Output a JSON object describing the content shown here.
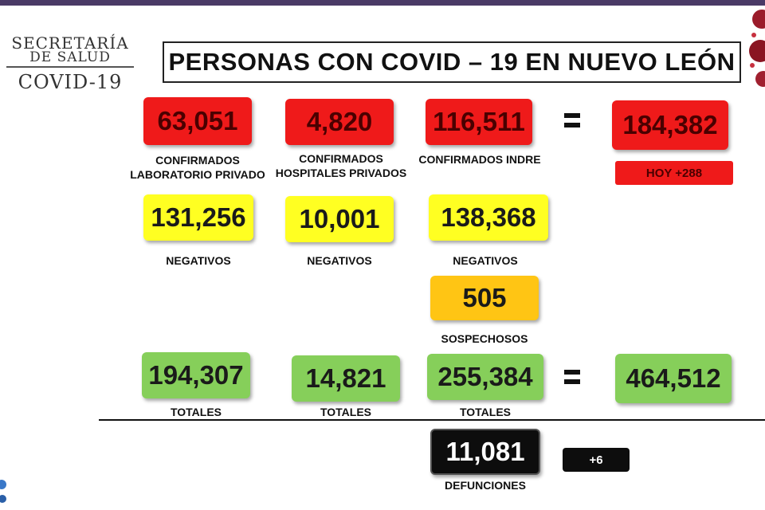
{
  "logo": {
    "line1": "SECRETARÍA",
    "line2": "DE SALUD",
    "line3": "COVID-19"
  },
  "title": "PERSONAS CON COVID – 19 EN NUEVO LEÓN",
  "confirmed": {
    "private_lab": {
      "value": "63,051",
      "label_line1": "CONFIRMADOS",
      "label_line2": "LABORATORIO PRIVADO"
    },
    "private_hospitals": {
      "value": "4,820",
      "label_line1": "CONFIRMADOS",
      "label_line2": "HOSPITALES PRIVADOS"
    },
    "indre": {
      "value": "116,511",
      "label": "CONFIRMADOS INDRE"
    },
    "total": {
      "value": "184,382",
      "today": "HOY +288"
    }
  },
  "negatives": {
    "private_lab": {
      "value": "131,256",
      "label": "NEGATIVOS"
    },
    "private_hospitals": {
      "value": "10,001",
      "label": "NEGATIVOS"
    },
    "indre": {
      "value": "138,368",
      "label": "NEGATIVOS"
    }
  },
  "suspects": {
    "value": "505",
    "label": "SOSPECHOSOS"
  },
  "totals": {
    "private_lab": {
      "value": "194,307",
      "label": "TOTALES"
    },
    "private_hospitals": {
      "value": "14,821",
      "label": "TOTALES"
    },
    "indre": {
      "value": "255,384",
      "label": "TOTALES"
    },
    "grand_total": {
      "value": "464,512"
    }
  },
  "deaths": {
    "value": "11,081",
    "label": "DEFUNCIONES",
    "today": "+6"
  },
  "colors": {
    "confirmed": "#ef1a1a",
    "negative": "#ffff22",
    "suspect": "#ffc514",
    "total": "#86cf5a",
    "deaths": "#0d0d0d"
  }
}
